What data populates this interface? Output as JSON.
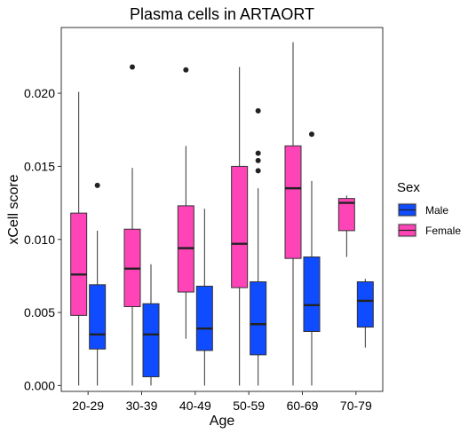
{
  "chart_data": {
    "type": "boxplot",
    "title": "Plasma cells in ARTAORT",
    "xlabel": "Age",
    "ylabel": "xCell score",
    "ylim": [
      -0.0004,
      0.0245
    ],
    "yticks": [
      0.0,
      0.005,
      0.01,
      0.015,
      0.02
    ],
    "ytick_labels": [
      "0.000",
      "0.005",
      "0.010",
      "0.015",
      "0.020"
    ],
    "categories": [
      "20-29",
      "30-39",
      "40-49",
      "50-59",
      "60-69",
      "70-79"
    ],
    "grid": false,
    "legend": {
      "title": "Sex",
      "placement": "right",
      "order": [
        "Male",
        "Female"
      ]
    },
    "series": [
      {
        "name": "Female",
        "color": "#FF44B8",
        "boxes": [
          {
            "min": 0.0,
            "q1": 0.0048,
            "median": 0.0076,
            "q3": 0.0118,
            "max": 0.0201,
            "outliers": []
          },
          {
            "min": 0.0,
            "q1": 0.0054,
            "median": 0.008,
            "q3": 0.0107,
            "max": 0.0149,
            "outliers": [
              0.0218
            ]
          },
          {
            "min": 0.0032,
            "q1": 0.0064,
            "median": 0.0094,
            "q3": 0.0123,
            "max": 0.0164,
            "outliers": [
              0.0216
            ]
          },
          {
            "min": 0.0,
            "q1": 0.0067,
            "median": 0.0097,
            "q3": 0.015,
            "max": 0.0218,
            "outliers": []
          },
          {
            "min": 0.0,
            "q1": 0.0087,
            "median": 0.0135,
            "q3": 0.0164,
            "max": 0.0235,
            "outliers": []
          },
          {
            "min": 0.0088,
            "q1": 0.0106,
            "median": 0.0125,
            "q3": 0.0128,
            "max": 0.013,
            "outliers": []
          }
        ]
      },
      {
        "name": "Male",
        "color": "#0F4BFF",
        "boxes": [
          {
            "min": 0.0,
            "q1": 0.0025,
            "median": 0.0035,
            "q3": 0.0069,
            "max": 0.0106,
            "outliers": [
              0.0137
            ]
          },
          {
            "min": 0.0,
            "q1": 0.0006,
            "median": 0.0035,
            "q3": 0.0056,
            "max": 0.0083,
            "outliers": []
          },
          {
            "min": 0.0,
            "q1": 0.0024,
            "median": 0.0039,
            "q3": 0.0068,
            "max": 0.0121,
            "outliers": []
          },
          {
            "min": 0.0,
            "q1": 0.0021,
            "median": 0.0042,
            "q3": 0.0071,
            "max": 0.0135,
            "outliers": [
              0.0147,
              0.0154,
              0.0159,
              0.0188
            ]
          },
          {
            "min": 0.0,
            "q1": 0.0037,
            "median": 0.0055,
            "q3": 0.0088,
            "max": 0.014,
            "outliers": [
              0.0172
            ]
          },
          {
            "min": 0.0026,
            "q1": 0.004,
            "median": 0.0058,
            "q3": 0.0071,
            "max": 0.0073,
            "outliers": []
          }
        ]
      }
    ]
  }
}
